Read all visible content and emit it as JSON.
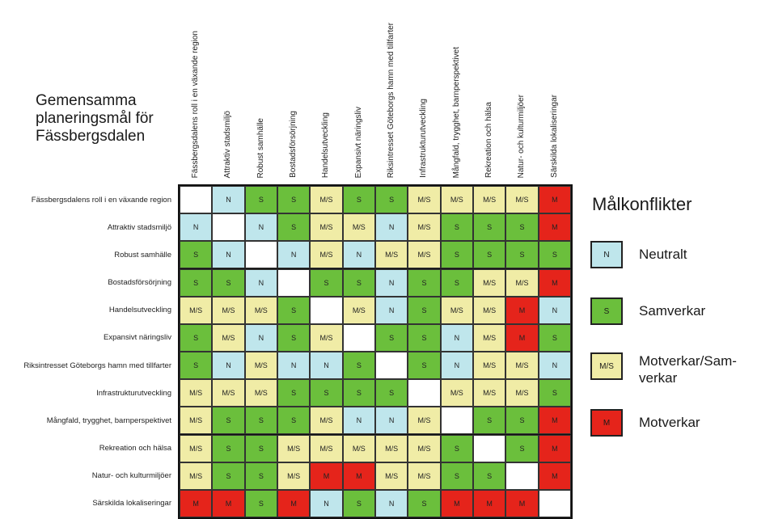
{
  "title": "Gemensamma planeringsmål för Fässbergsdalen",
  "columns": [
    "Fässbergsdalens roll i en växande region",
    "Attraktiv stadsmiljö",
    "Robust samhälle",
    "Bostadsförsörjning",
    "Handelsutveckling",
    "Expansivt näringsliv",
    "Riksintresset Göteborgs hamn med tillfarter",
    "Infrastrukturutveckling",
    "Mångfald, trygghet, barnperspektivet",
    "Rekreation och hälsa",
    "Natur- och kulturmiljöer",
    "Särskilda lokaliseringar"
  ],
  "rows": [
    "Fässbergsdalens roll i en växande region",
    "Attraktiv stadsmiljö",
    "Robust samhälle",
    "Bostadsförsörjning",
    "Handelsutveckling",
    "Expansivt näringsliv",
    "Riksintresset Göteborgs hamn med tillfarter",
    "Infrastrukturutveckling",
    "Mångfald, trygghet, barnperspektivet",
    "Rekreation och hälsa",
    "Natur- och kulturmiljöer",
    "Särskilda lokaliseringar"
  ],
  "matrix": [
    [
      "",
      "N",
      "S",
      "S",
      "M/S",
      "S",
      "S",
      "M/S",
      "M/S",
      "M/S",
      "M/S",
      "M"
    ],
    [
      "N",
      "",
      "N",
      "S",
      "M/S",
      "M/S",
      "N",
      "M/S",
      "S",
      "S",
      "S",
      "M"
    ],
    [
      "S",
      "N",
      "",
      "N",
      "M/S",
      "N",
      "M/S",
      "M/S",
      "S",
      "S",
      "S",
      "S"
    ],
    [
      "S",
      "S",
      "N",
      "",
      "S",
      "S",
      "N",
      "S",
      "S",
      "M/S",
      "M/S",
      "M"
    ],
    [
      "M/S",
      "M/S",
      "M/S",
      "S",
      "",
      "M/S",
      "N",
      "S",
      "M/S",
      "M/S",
      "M",
      "N"
    ],
    [
      "S",
      "M/S",
      "N",
      "S",
      "M/S",
      "",
      "S",
      "S",
      "N",
      "M/S",
      "M",
      "S"
    ],
    [
      "S",
      "N",
      "M/S",
      "N",
      "N",
      "S",
      "",
      "S",
      "N",
      "M/S",
      "M/S",
      "N"
    ],
    [
      "M/S",
      "M/S",
      "M/S",
      "S",
      "S",
      "S",
      "S",
      "",
      "M/S",
      "M/S",
      "M/S",
      "S"
    ],
    [
      "M/S",
      "S",
      "S",
      "S",
      "M/S",
      "N",
      "N",
      "M/S",
      "",
      "S",
      "S",
      "M"
    ],
    [
      "M/S",
      "S",
      "S",
      "M/S",
      "M/S",
      "M/S",
      "M/S",
      "M/S",
      "S",
      "",
      "S",
      "M"
    ],
    [
      "M/S",
      "S",
      "S",
      "M/S",
      "M",
      "M",
      "M/S",
      "M/S",
      "S",
      "S",
      "",
      "M"
    ],
    [
      "M",
      "M",
      "S",
      "M",
      "N",
      "S",
      "N",
      "S",
      "M",
      "M",
      "M",
      ""
    ]
  ],
  "colors": {
    "N": "#bfe6ec",
    "S": "#6bbf3c",
    "M/S": "#f0eca6",
    "M": "#e5241b",
    "empty": "#ffffff"
  },
  "legend": {
    "title": "Målkonflikter",
    "items": [
      {
        "code": "N",
        "label": "Neutralt"
      },
      {
        "code": "S",
        "label": "Samverkar"
      },
      {
        "code": "M/S",
        "label": "Motverkar/Sam-verkar"
      },
      {
        "code": "M",
        "label": "Motverkar"
      }
    ]
  }
}
